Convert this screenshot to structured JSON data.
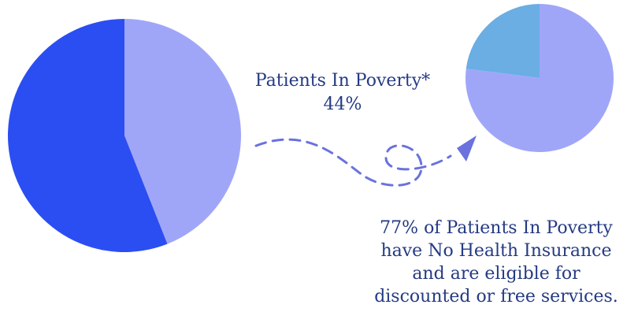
{
  "chart_data": [
    {
      "type": "pie",
      "slices": [
        {
          "label": "Patients In Poverty*",
          "value": 44,
          "color": "#a0a6f7"
        },
        {
          "label": "",
          "value": 56,
          "color": "#2b4ef2"
        }
      ]
    },
    {
      "type": "pie",
      "slices": [
        {
          "label": "",
          "value": 77,
          "color": "#a0a6f7"
        },
        {
          "label": "",
          "value": 23,
          "color": "#6aaee3"
        }
      ]
    }
  ],
  "labels": {
    "poverty_title": "Patients In Poverty*",
    "poverty_percent": "44%",
    "insurance_lines": [
      "77% of Patients In Poverty",
      "have No Health Insurance",
      "and are eligible for",
      "discounted or free services."
    ]
  },
  "colors": {
    "text": "#243a83",
    "arrow": "#6a72de"
  }
}
